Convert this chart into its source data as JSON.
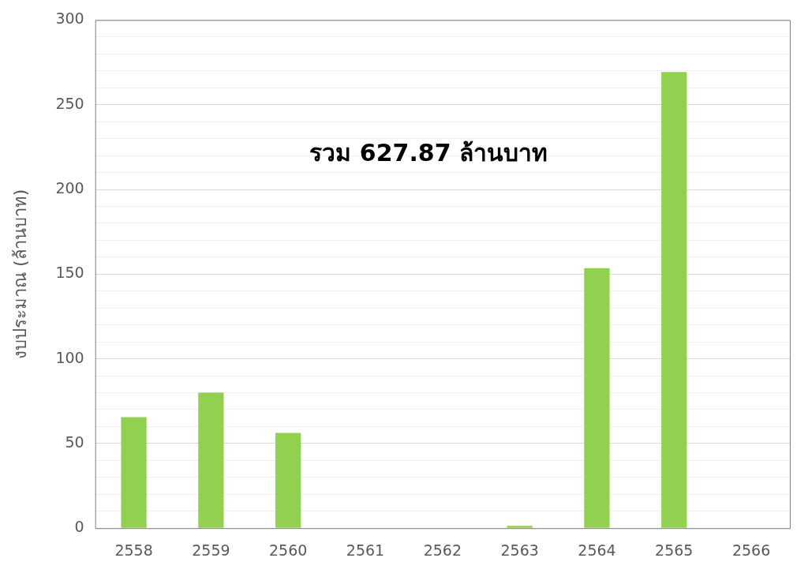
{
  "chart_data": {
    "type": "bar",
    "ylabel": "งบประมาณ (ล้านบาท)",
    "categories": [
      "2558",
      "2559",
      "2560",
      "2561",
      "2562",
      "2563",
      "2564",
      "2565",
      "2566"
    ],
    "values": [
      65.6,
      80,
      56.3,
      0,
      0,
      1.4,
      153.5,
      269.3,
      0
    ],
    "color": "#92d050",
    "ylim": [
      0,
      300
    ],
    "yticks": [
      0,
      {
        "value": 10,
        "label": null
      },
      {
        "value": 20,
        "label": null
      },
      {
        "value": 30,
        "label": null
      },
      {
        "value": 40,
        "label": null
      },
      50,
      {
        "value": 60,
        "label": null
      },
      {
        "value": 70,
        "label": null
      },
      {
        "value": 80,
        "label": null
      },
      {
        "value": 90,
        "label": null
      },
      100,
      {
        "value": 110,
        "label": null
      },
      {
        "value": 120,
        "label": null
      },
      {
        "value": 130,
        "label": null
      },
      {
        "value": 140,
        "label": null
      },
      150,
      {
        "value": 160,
        "label": null
      },
      {
        "value": 170,
        "label": null
      },
      {
        "value": 180,
        "label": null
      },
      {
        "value": 190,
        "label": null
      },
      200,
      {
        "value": 210,
        "label": null
      },
      {
        "value": 220,
        "label": null
      },
      {
        "value": 230,
        "label": null
      },
      {
        "value": 240,
        "label": null
      },
      250,
      {
        "value": 260,
        "label": null
      },
      {
        "value": 270,
        "label": null
      },
      {
        "value": 280,
        "label": null
      },
      {
        "value": 290,
        "label": null
      },
      300
    ],
    "grid": "y",
    "annotations": [
      "รวม 627.87 ล้านบาท"
    ]
  }
}
